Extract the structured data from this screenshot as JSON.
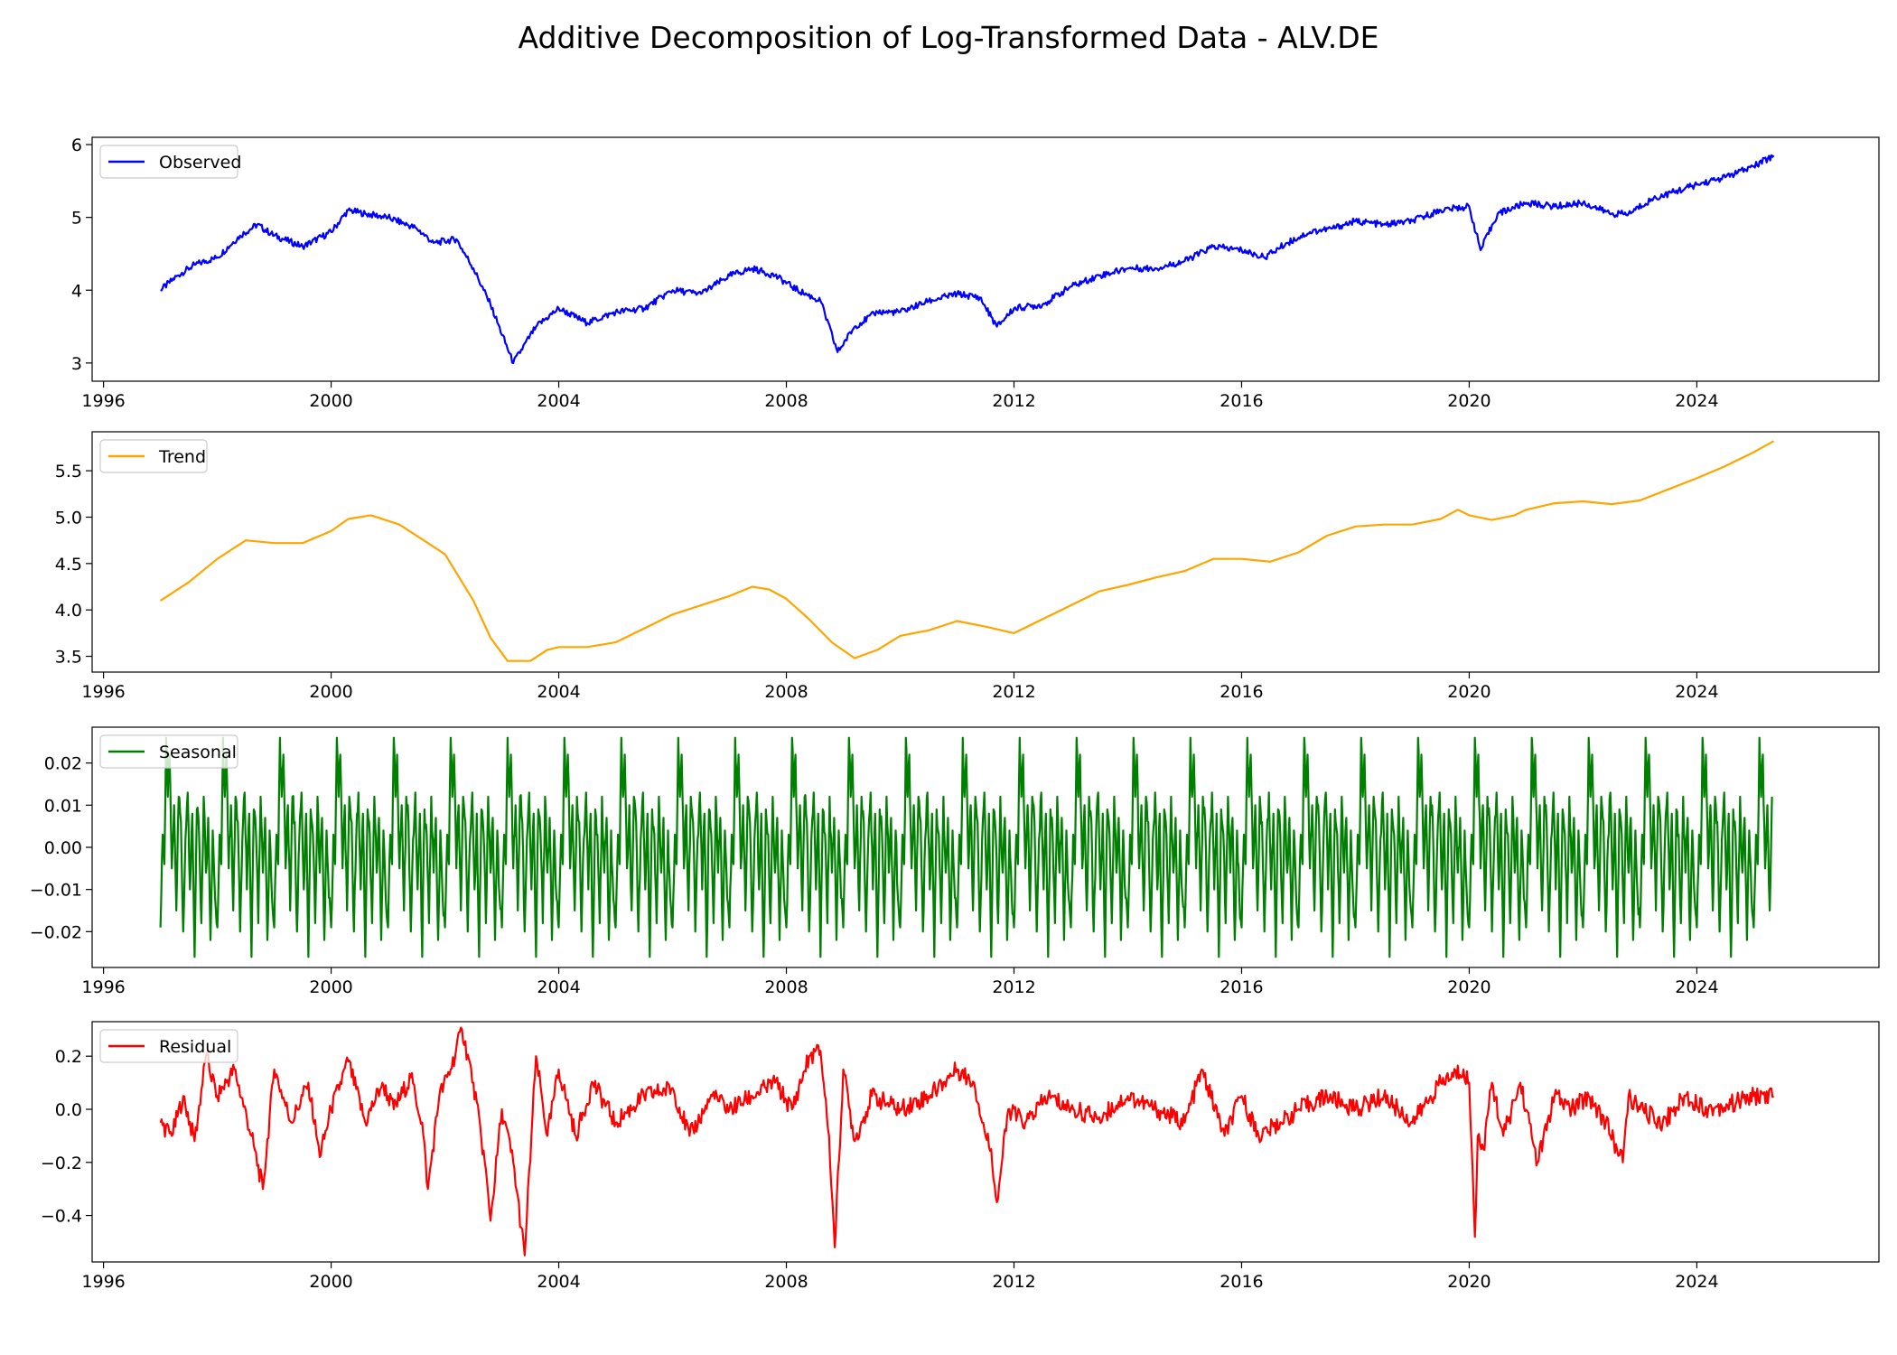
{
  "figure": {
    "title": "Additive Decomposition of Log-Transformed Data - ALV.DE"
  },
  "chart_data": [
    {
      "type": "line",
      "legend": "Observed",
      "color": "#0000ff",
      "xlim": [
        1995.8,
        2027.2
      ],
      "ylim": [
        2.75,
        6.1
      ],
      "x_ticks": [
        1996,
        2000,
        2004,
        2008,
        2012,
        2016,
        2020,
        2024
      ],
      "y_ticks": [
        3,
        4,
        5,
        6
      ],
      "y_tick_labels": [
        "3",
        "4",
        "5",
        "6"
      ],
      "legend_loc": "upper left",
      "series": [
        {
          "name": "Observed",
          "x": [
            1997.0,
            1997.3,
            1997.6,
            1998.0,
            1998.4,
            1998.7,
            1999.0,
            1999.5,
            2000.0,
            2000.3,
            2000.6,
            2001.0,
            2001.5,
            2001.8,
            2002.2,
            2002.5,
            2002.8,
            2003.2,
            2003.6,
            2004.0,
            2004.5,
            2005.0,
            2005.5,
            2006.0,
            2006.5,
            2007.0,
            2007.4,
            2007.8,
            2008.2,
            2008.6,
            2008.9,
            2009.2,
            2009.6,
            2010.0,
            2010.5,
            2011.0,
            2011.4,
            2011.7,
            2012.0,
            2012.5,
            2013.0,
            2013.5,
            2014.0,
            2014.5,
            2015.0,
            2015.5,
            2016.0,
            2016.4,
            2016.8,
            2017.2,
            2017.6,
            2018.0,
            2018.5,
            2019.0,
            2019.5,
            2020.0,
            2020.2,
            2020.5,
            2021.0,
            2021.5,
            2022.0,
            2022.5,
            2022.8,
            2023.2,
            2023.6,
            2024.0,
            2024.5,
            2025.0,
            2025.35
          ],
          "y": [
            4.0,
            4.2,
            4.35,
            4.45,
            4.75,
            4.9,
            4.75,
            4.6,
            4.8,
            5.1,
            5.05,
            5.0,
            4.85,
            4.65,
            4.7,
            4.3,
            3.8,
            3.0,
            3.5,
            3.75,
            3.55,
            3.7,
            3.75,
            4.0,
            3.95,
            4.2,
            4.3,
            4.2,
            4.0,
            3.85,
            3.15,
            3.5,
            3.7,
            3.7,
            3.85,
            3.95,
            3.9,
            3.5,
            3.75,
            3.8,
            4.05,
            4.2,
            4.3,
            4.3,
            4.4,
            4.6,
            4.55,
            4.45,
            4.65,
            4.8,
            4.85,
            4.95,
            4.9,
            4.95,
            5.1,
            5.15,
            4.55,
            5.05,
            5.2,
            5.15,
            5.2,
            5.05,
            5.05,
            5.25,
            5.35,
            5.45,
            5.55,
            5.7,
            5.85
          ]
        }
      ]
    },
    {
      "type": "line",
      "legend": "Trend",
      "color": "#ffa500",
      "xlim": [
        1995.8,
        2027.2
      ],
      "ylim": [
        3.33,
        5.92
      ],
      "x_ticks": [
        1996,
        2000,
        2004,
        2008,
        2012,
        2016,
        2020,
        2024
      ],
      "y_ticks": [
        3.5,
        4.0,
        4.5,
        5.0,
        5.5
      ],
      "y_tick_labels": [
        "3.5",
        "4.0",
        "4.5",
        "5.0",
        "5.5"
      ],
      "legend_loc": "upper left",
      "series": [
        {
          "name": "Trend",
          "x": [
            1997.0,
            1997.5,
            1998.0,
            1998.5,
            1999.0,
            1999.5,
            2000.0,
            2000.3,
            2000.7,
            2001.2,
            2001.7,
            2002.0,
            2002.5,
            2002.8,
            2003.1,
            2003.5,
            2003.8,
            2004.0,
            2004.5,
            2005.0,
            2005.5,
            2006.0,
            2006.5,
            2007.0,
            2007.4,
            2007.7,
            2008.0,
            2008.4,
            2008.8,
            2009.2,
            2009.6,
            2010.0,
            2010.5,
            2011.0,
            2011.5,
            2012.0,
            2012.5,
            2013.0,
            2013.5,
            2014.0,
            2014.5,
            2015.0,
            2015.5,
            2016.0,
            2016.5,
            2017.0,
            2017.5,
            2018.0,
            2018.5,
            2019.0,
            2019.5,
            2019.8,
            2020.0,
            2020.4,
            2020.8,
            2021.0,
            2021.5,
            2022.0,
            2022.5,
            2023.0,
            2023.5,
            2024.0,
            2024.5,
            2025.0,
            2025.35
          ],
          "y": [
            4.1,
            4.3,
            4.55,
            4.75,
            4.72,
            4.72,
            4.85,
            4.98,
            5.02,
            4.92,
            4.72,
            4.6,
            4.1,
            3.7,
            3.45,
            3.45,
            3.57,
            3.6,
            3.6,
            3.65,
            3.8,
            3.95,
            4.05,
            4.15,
            4.25,
            4.22,
            4.12,
            3.9,
            3.65,
            3.48,
            3.57,
            3.72,
            3.78,
            3.88,
            3.82,
            3.75,
            3.9,
            4.05,
            4.2,
            4.27,
            4.35,
            4.42,
            4.55,
            4.55,
            4.52,
            4.62,
            4.8,
            4.9,
            4.92,
            4.92,
            4.98,
            5.08,
            5.02,
            4.97,
            5.02,
            5.08,
            5.15,
            5.17,
            5.14,
            5.18,
            5.3,
            5.42,
            5.55,
            5.7,
            5.82
          ]
        }
      ]
    },
    {
      "type": "line",
      "legend": "Seasonal",
      "color": "#008000",
      "xlim": [
        1995.8,
        2027.2
      ],
      "ylim": [
        -0.0285,
        0.0285
      ],
      "x_ticks": [
        1996,
        2000,
        2004,
        2008,
        2012,
        2016,
        2020,
        2024
      ],
      "y_ticks": [
        -0.02,
        -0.01,
        0.0,
        0.01,
        0.02
      ],
      "y_tick_labels": [
        "−0.02",
        "−0.01",
        "0.00",
        "0.01",
        "0.02"
      ],
      "legend_loc": "upper left",
      "pattern_range": [
        1997.0,
        2025.35
      ],
      "period_years": 1.0,
      "pattern": {
        "phase": [
          0.0,
          0.04,
          0.07,
          0.1,
          0.13,
          0.16,
          0.2,
          0.24,
          0.28,
          0.32,
          0.36,
          0.4,
          0.44,
          0.48,
          0.52,
          0.56,
          0.6,
          0.64,
          0.68,
          0.72,
          0.76,
          0.8,
          0.84,
          0.88,
          0.92,
          0.96
        ],
        "value": [
          -0.019,
          0.003,
          -0.004,
          0.026,
          0.012,
          0.022,
          -0.005,
          0.01,
          -0.015,
          0.012,
          0.006,
          -0.02,
          0.002,
          0.013,
          -0.01,
          0.008,
          -0.026,
          0.009,
          0.003,
          -0.018,
          0.012,
          -0.006,
          0.007,
          -0.022,
          0.004,
          -0.012
        ]
      }
    },
    {
      "type": "line",
      "legend": "Residual",
      "color": "#ff0000",
      "xlim": [
        1995.8,
        2027.2
      ],
      "ylim": [
        -0.575,
        0.33
      ],
      "x_ticks": [
        1996,
        2000,
        2004,
        2008,
        2012,
        2016,
        2020,
        2024
      ],
      "y_ticks": [
        -0.4,
        -0.2,
        0.0,
        0.2
      ],
      "y_tick_labels": [
        "−0.4",
        "−0.2",
        "0.0",
        "0.2"
      ],
      "legend_loc": "upper left",
      "series": [
        {
          "name": "Residual",
          "x": [
            1997.0,
            1997.2,
            1997.4,
            1997.6,
            1997.8,
            1998.0,
            1998.3,
            1998.6,
            1998.8,
            1999.0,
            1999.3,
            1999.6,
            1999.8,
            2000.0,
            2000.3,
            2000.6,
            2000.9,
            2001.1,
            2001.4,
            2001.6,
            2001.7,
            2001.9,
            2002.1,
            2002.3,
            2002.5,
            2002.7,
            2002.8,
            2003.0,
            2003.2,
            2003.4,
            2003.6,
            2003.8,
            2004.0,
            2004.3,
            2004.6,
            2005.0,
            2005.5,
            2006.0,
            2006.3,
            2006.7,
            2007.0,
            2007.4,
            2007.8,
            2008.1,
            2008.4,
            2008.6,
            2008.75,
            2008.85,
            2009.0,
            2009.2,
            2009.5,
            2010.0,
            2010.5,
            2011.0,
            2011.3,
            2011.5,
            2011.6,
            2011.7,
            2011.9,
            2012.2,
            2012.6,
            2013.0,
            2013.5,
            2014.0,
            2014.5,
            2015.0,
            2015.3,
            2015.7,
            2016.0,
            2016.3,
            2016.7,
            2017.0,
            2017.5,
            2018.0,
            2018.5,
            2019.0,
            2019.5,
            2019.9,
            2020.0,
            2020.1,
            2020.15,
            2020.25,
            2020.4,
            2020.6,
            2020.9,
            2021.2,
            2021.5,
            2021.8,
            2022.1,
            2022.4,
            2022.7,
            2022.8,
            2023.0,
            2023.4,
            2023.8,
            2024.2,
            2024.6,
            2025.0,
            2025.35
          ],
          "y": [
            -0.05,
            -0.1,
            0.05,
            -0.12,
            0.2,
            0.05,
            0.15,
            -0.1,
            -0.3,
            0.15,
            -0.05,
            0.1,
            -0.18,
            0.0,
            0.18,
            -0.05,
            0.1,
            0.0,
            0.12,
            -0.05,
            -0.3,
            0.05,
            0.15,
            0.3,
            0.1,
            -0.2,
            -0.42,
            0.0,
            -0.2,
            -0.55,
            0.2,
            -0.1,
            0.15,
            -0.1,
            0.1,
            -0.05,
            0.05,
            0.08,
            -0.1,
            0.05,
            0.0,
            0.05,
            0.1,
            0.0,
            0.2,
            0.22,
            -0.1,
            -0.52,
            0.15,
            -0.12,
            0.05,
            0.0,
            0.05,
            0.15,
            0.1,
            -0.1,
            -0.15,
            -0.35,
            0.0,
            -0.05,
            0.05,
            0.0,
            -0.03,
            0.05,
            0.0,
            -0.05,
            0.15,
            -0.1,
            0.05,
            -0.1,
            -0.05,
            0.0,
            0.05,
            0.0,
            0.05,
            -0.05,
            0.1,
            0.15,
            0.1,
            -0.48,
            -0.1,
            -0.15,
            0.1,
            -0.1,
            0.1,
            -0.2,
            0.05,
            0.0,
            0.05,
            -0.05,
            -0.2,
            0.05,
            0.0,
            -0.05,
            0.05,
            0.0,
            0.02,
            0.05,
            0.05
          ]
        }
      ]
    }
  ]
}
